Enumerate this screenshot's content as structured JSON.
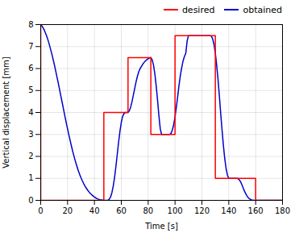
{
  "chart_data": {
    "type": "line",
    "xlabel": "Time [s]",
    "ylabel": "Vertical displacement [mm]",
    "xlim": [
      0,
      180
    ],
    "ylim": [
      0,
      8
    ],
    "xticks": [
      0,
      20,
      40,
      60,
      80,
      100,
      120,
      140,
      160,
      180
    ],
    "yticks": [
      0,
      1,
      2,
      3,
      4,
      5,
      6,
      7,
      8
    ],
    "grid": true,
    "legend": "upper right",
    "series": [
      {
        "name": "desired",
        "color": "#ff0000",
        "x": [
          0,
          0,
          47,
          47,
          65,
          65,
          82,
          82,
          100,
          100,
          130,
          130,
          160,
          160,
          180
        ],
        "values": [
          8,
          0,
          0,
          4,
          4,
          6.5,
          6.5,
          3,
          3,
          7.5,
          7.5,
          1,
          1,
          0,
          0
        ]
      },
      {
        "name": "obtained",
        "color": "#0000cc",
        "x": [
          0,
          1,
          2,
          3,
          4,
          5,
          6,
          7,
          8,
          9,
          10,
          11,
          12,
          13,
          14,
          15,
          16,
          17,
          18,
          19,
          20,
          21,
          22,
          23,
          24,
          25,
          26,
          27,
          28,
          29,
          30,
          31,
          32,
          33,
          34,
          35,
          36,
          37,
          38,
          39,
          40,
          41,
          42,
          43,
          44,
          45,
          46,
          47,
          48,
          49,
          50,
          51,
          52,
          53,
          54,
          55,
          56,
          57,
          58,
          59,
          60,
          61,
          62,
          63,
          64,
          65,
          66,
          67,
          68,
          69,
          70,
          71,
          72,
          73,
          74,
          75,
          76,
          77,
          78,
          79,
          80,
          81,
          82,
          83,
          84,
          85,
          86,
          87,
          88,
          89,
          90,
          91,
          92,
          93,
          94,
          95,
          96,
          97,
          98,
          99,
          100,
          101,
          102,
          103,
          104,
          105,
          106,
          107,
          108,
          109,
          110,
          111,
          112,
          113,
          114,
          115,
          116,
          117,
          118,
          119,
          120,
          121,
          122,
          123,
          124,
          125,
          126,
          127,
          128,
          129,
          130,
          131,
          132,
          133,
          134,
          135,
          136,
          137,
          138,
          139,
          140,
          141,
          142,
          143,
          144,
          145,
          146,
          147,
          148,
          149,
          150,
          151,
          152,
          153,
          154,
          155,
          156,
          157,
          158,
          159,
          160,
          161,
          162,
          163,
          164,
          165,
          166,
          167,
          168,
          169,
          170,
          171,
          172,
          173,
          174,
          175,
          176,
          177,
          178,
          179,
          180
        ],
        "values": [
          8.0,
          7.93,
          7.83,
          7.7,
          7.55,
          7.38,
          7.18,
          6.96,
          6.73,
          6.48,
          6.22,
          5.94,
          5.65,
          5.36,
          5.06,
          4.75,
          4.45,
          4.14,
          3.84,
          3.54,
          3.25,
          2.97,
          2.7,
          2.44,
          2.19,
          1.96,
          1.74,
          1.54,
          1.35,
          1.18,
          1.03,
          0.89,
          0.76,
          0.65,
          0.55,
          0.46,
          0.38,
          0.31,
          0.25,
          0.2,
          0.15,
          0.11,
          0.08,
          0.05,
          0.03,
          0.02,
          0.01,
          0.0,
          0.0,
          0.0,
          0.0,
          0.05,
          0.15,
          0.35,
          0.65,
          1.05,
          1.55,
          2.1,
          2.65,
          3.15,
          3.55,
          3.82,
          3.95,
          4.0,
          4.0,
          4.0,
          4.08,
          4.25,
          4.5,
          4.8,
          5.1,
          5.4,
          5.65,
          5.85,
          6.0,
          6.1,
          6.2,
          6.28,
          6.35,
          6.4,
          6.45,
          6.48,
          6.5,
          6.4,
          6.15,
          5.75,
          5.2,
          4.55,
          3.85,
          3.25,
          3.0,
          3.0,
          3.0,
          3.0,
          3.0,
          3.0,
          3.0,
          3.05,
          3.2,
          3.45,
          3.8,
          4.25,
          4.75,
          5.25,
          5.7,
          6.05,
          6.35,
          6.55,
          6.7,
          7.25,
          7.5,
          7.5,
          7.5,
          7.5,
          7.5,
          7.5,
          7.5,
          7.5,
          7.5,
          7.5,
          7.5,
          7.5,
          7.5,
          7.5,
          7.5,
          7.5,
          7.5,
          7.48,
          7.35,
          7.1,
          6.7,
          6.15,
          5.5,
          4.75,
          3.95,
          3.2,
          2.5,
          1.9,
          1.45,
          1.15,
          1.0,
          1.0,
          1.0,
          1.0,
          1.0,
          1.0,
          1.0,
          0.98,
          0.92,
          0.82,
          0.68,
          0.52,
          0.38,
          0.26,
          0.16,
          0.09,
          0.05,
          0.02,
          0.01,
          0.0,
          0.0,
          0.0,
          0.0,
          0.0,
          0.0,
          0.0,
          0.0,
          0.0,
          0.0,
          0.0,
          0.0,
          0.0,
          0.0,
          0.0,
          0.0,
          0.0,
          0.0,
          0.0,
          0.0,
          0.0,
          0.0
        ]
      }
    ]
  }
}
